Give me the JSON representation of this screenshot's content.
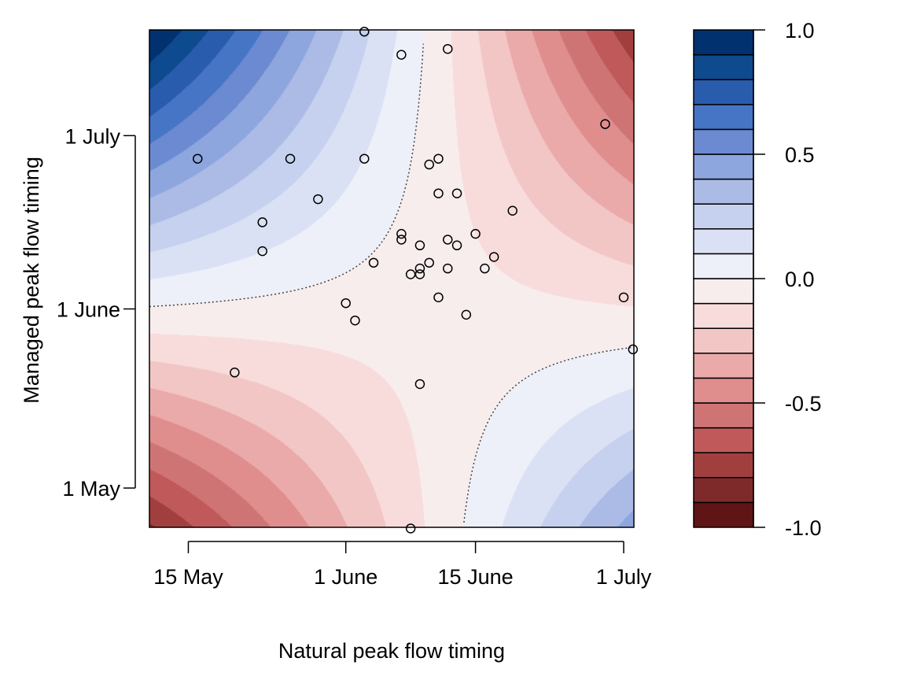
{
  "chart_data": {
    "type": "contour",
    "title": "",
    "xlabel": "Natural peak flow timing",
    "ylabel": "Managed peak flow timing",
    "x_units": "day of year",
    "y_units": "day of year",
    "xlim": [
      130.8,
      183.1
    ],
    "ylim": [
      114.2,
      200.3
    ],
    "x_ticks": [
      {
        "value": 135,
        "label": "15 May"
      },
      {
        "value": 152,
        "label": "1 June"
      },
      {
        "value": 166,
        "label": "15 June"
      },
      {
        "value": 182,
        "label": "1 July"
      }
    ],
    "y_ticks": [
      {
        "value": 121,
        "label": "1 May"
      },
      {
        "value": 152,
        "label": "1 June"
      },
      {
        "value": 182,
        "label": "1 July"
      }
    ],
    "surface": {
      "model": "saddle",
      "formula": "z = -c*(x-x0)*(y-y0) + d",
      "c": 0.00068,
      "x0": 162.2,
      "y0": 149.6,
      "d": -0.06
    },
    "zero_contour_style": "dotted",
    "levels": [
      -1.0,
      -0.9,
      -0.8,
      -0.7,
      -0.6,
      -0.5,
      -0.4,
      -0.3,
      -0.2,
      -0.1,
      0.0,
      0.1,
      0.2,
      0.3,
      0.4,
      0.5,
      0.6,
      0.7,
      0.8,
      0.9,
      1.0
    ],
    "level_colors": [
      "#5f1515",
      "#7f2a2a",
      "#a13f3f",
      "#c05a5a",
      "#cf7474",
      "#df8d8d",
      "#ebaaaa",
      "#f3c6c6",
      "#f8dcdc",
      "#f8eded",
      "#edf0f8",
      "#dbe1f4",
      "#c5d1ef",
      "#abbbe6",
      "#8ea6de",
      "#6b8ad2",
      "#4675c6",
      "#2a5cae",
      "#0d4a8e",
      "#023170"
    ],
    "colorbar_ticks": [
      {
        "value": 1.0,
        "label": "1.0"
      },
      {
        "value": 0.5,
        "label": "0.5"
      },
      {
        "value": 0.0,
        "label": "0.0"
      },
      {
        "value": -0.5,
        "label": "-0.5"
      },
      {
        "value": -1.0,
        "label": "-1.0"
      }
    ],
    "points": [
      [
        154,
        200
      ],
      [
        158,
        196
      ],
      [
        163,
        197
      ],
      [
        180,
        184
      ],
      [
        136,
        178
      ],
      [
        146,
        178
      ],
      [
        154,
        178
      ],
      [
        161,
        177
      ],
      [
        162,
        178
      ],
      [
        149,
        171
      ],
      [
        162,
        172
      ],
      [
        164,
        172
      ],
      [
        170,
        169
      ],
      [
        143,
        167
      ],
      [
        143,
        162
      ],
      [
        158,
        165
      ],
      [
        158,
        164
      ],
      [
        160,
        163
      ],
      [
        163,
        164
      ],
      [
        164,
        163
      ],
      [
        166,
        165
      ],
      [
        155,
        160
      ],
      [
        161,
        160
      ],
      [
        160,
        159
      ],
      [
        159,
        158
      ],
      [
        160,
        158
      ],
      [
        163,
        159
      ],
      [
        167,
        159
      ],
      [
        168,
        161
      ],
      [
        162,
        154
      ],
      [
        182,
        154
      ],
      [
        152,
        153
      ],
      [
        153,
        150
      ],
      [
        165,
        151
      ],
      [
        183,
        145
      ],
      [
        140,
        141
      ],
      [
        160,
        139
      ],
      [
        159,
        114
      ]
    ]
  }
}
